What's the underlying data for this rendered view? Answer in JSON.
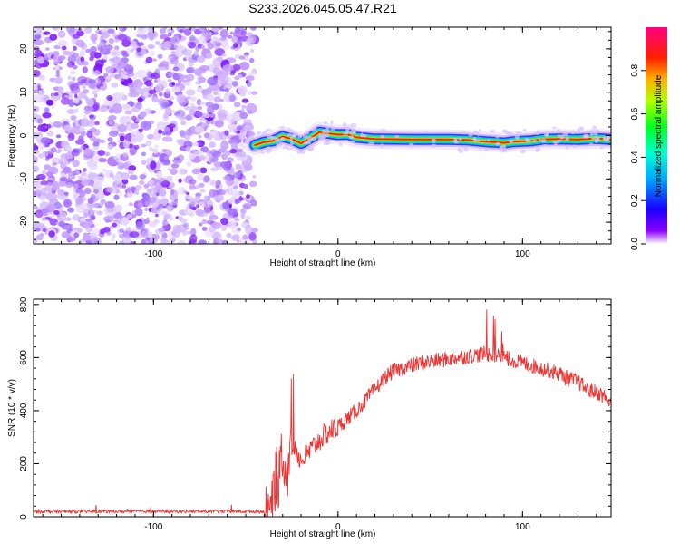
{
  "chart_data": [
    {
      "type": "heatmap",
      "title": "S233.2026.045.05.47.R21",
      "xlabel": "Height of straight line (km)",
      "ylabel": "Frequency (Hz)",
      "xlim": [
        -165,
        148
      ],
      "ylim": [
        -25,
        25
      ],
      "xticks": [
        -100,
        0,
        100
      ],
      "yticks": [
        -20,
        -10,
        0,
        10,
        20
      ],
      "noise_region_x": [
        -165,
        -45
      ],
      "signal_track": {
        "x": [
          -45,
          -40,
          -35,
          -30,
          -25,
          -20,
          -15,
          -10,
          -5,
          0,
          5,
          10,
          20,
          40,
          60,
          70,
          80,
          85,
          90,
          95,
          100,
          105,
          110,
          120,
          130,
          140,
          148
        ],
        "freq": [
          -2.2,
          -1.5,
          -1.2,
          -0.2,
          -0.8,
          -1.8,
          -0.6,
          0.8,
          0.5,
          0.2,
          0.3,
          -0.4,
          -0.8,
          -0.9,
          -0.9,
          -1.0,
          -1.4,
          -1.5,
          -1.7,
          -1.4,
          -1.3,
          -1.2,
          -0.9,
          -0.8,
          -0.9,
          -0.7,
          -0.9
        ]
      },
      "colorbar": {
        "label": "Normalized spectral amplitude",
        "ticks": [
          "0.0",
          "0.2",
          "0.4",
          "0.6",
          "0.8"
        ],
        "tick_values": [
          0.0,
          0.2,
          0.4,
          0.6,
          0.8
        ],
        "range": [
          0,
          1
        ]
      }
    },
    {
      "type": "line",
      "xlabel": "Height of straight line (km)",
      "ylabel": "SNR (10 * v/v)",
      "xlim": [
        -165,
        148
      ],
      "ylim": [
        0,
        820
      ],
      "xticks": [
        -100,
        0,
        100
      ],
      "yticks": [
        0,
        200,
        400,
        600,
        800
      ],
      "series": [
        {
          "name": "SNR",
          "color": "#ee3333",
          "x": [
            -165,
            -150,
            -120,
            -90,
            -60,
            -40,
            -36,
            -34,
            -31,
            -29,
            -27,
            -25,
            -22,
            -20,
            -15,
            -10,
            -5,
            0,
            5,
            10,
            15,
            20,
            25,
            30,
            35,
            40,
            45,
            50,
            55,
            60,
            65,
            70,
            75,
            80,
            85,
            88,
            90,
            95,
            100,
            105,
            110,
            115,
            120,
            125,
            130,
            135,
            140,
            145,
            148
          ],
          "y": [
            20,
            20,
            20,
            20,
            20,
            20,
            40,
            150,
            250,
            200,
            150,
            300,
            240,
            210,
            250,
            290,
            320,
            340,
            370,
            400,
            440,
            480,
            520,
            550,
            560,
            570,
            580,
            585,
            590,
            595,
            600,
            605,
            610,
            615,
            610,
            605,
            600,
            590,
            580,
            570,
            560,
            550,
            540,
            520,
            510,
            480,
            470,
            450,
            420
          ]
        }
      ]
    }
  ]
}
